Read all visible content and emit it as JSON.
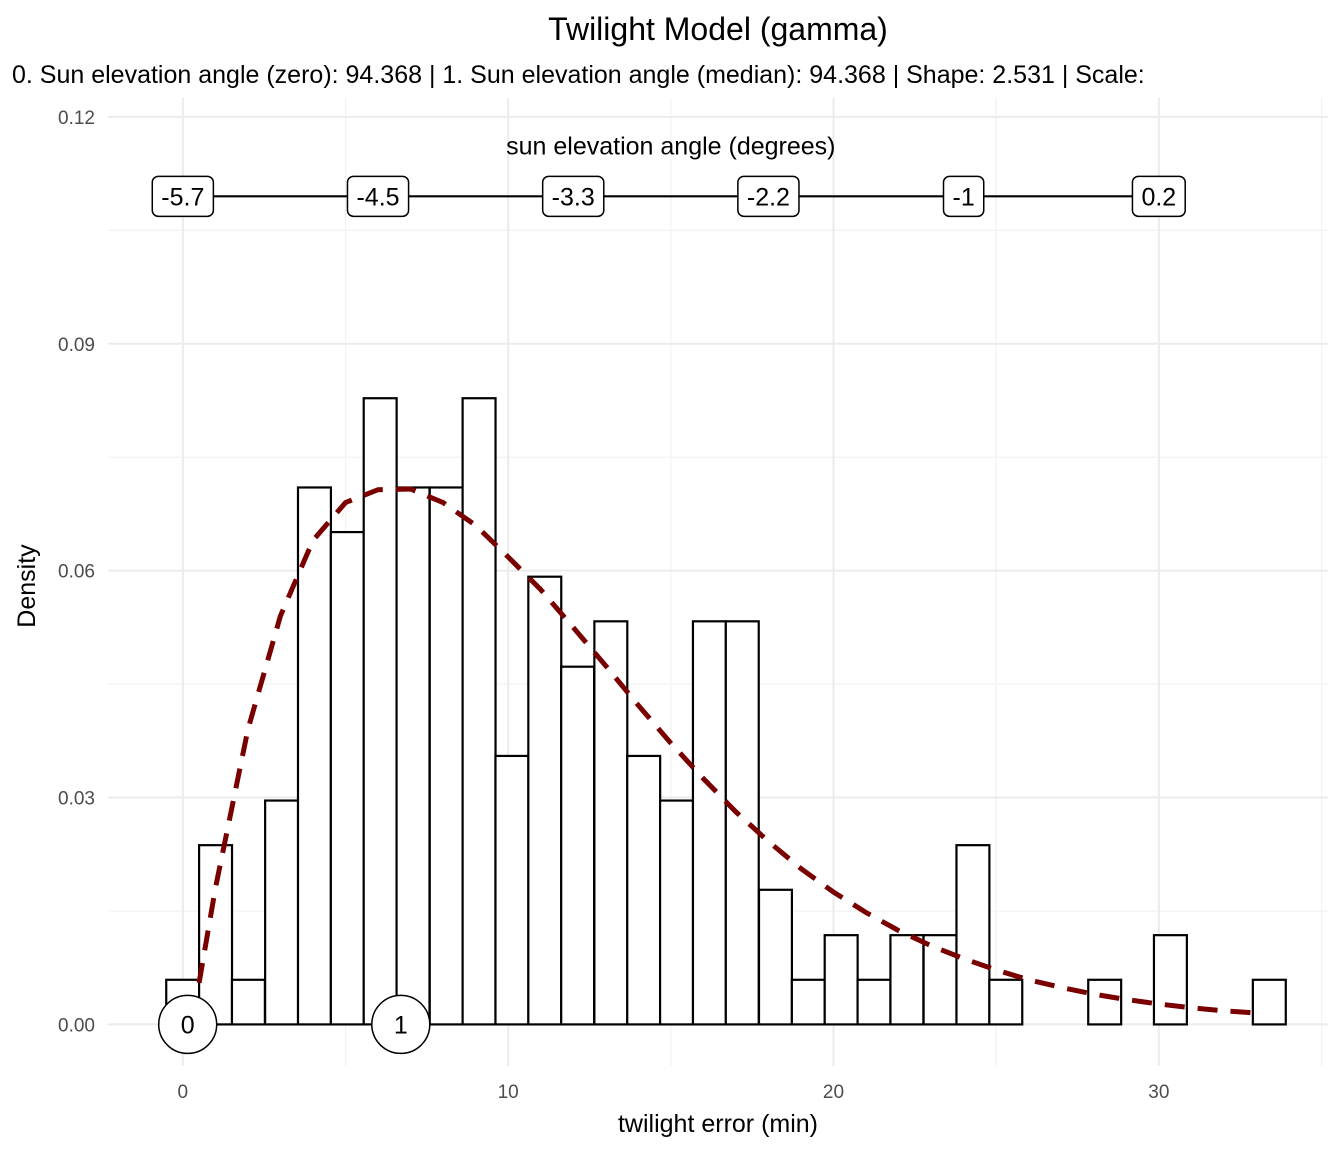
{
  "chart_data": {
    "type": "bar",
    "title": "Twilight Model (gamma)",
    "subtitle": "0. Sun elevation angle (zero): 94.368 | 1. Sun elevation angle (median): 94.368 | Shape: 2.531 | Scale:",
    "xlabel": "twilight error (min)",
    "ylabel": "Density",
    "xlim": [
      -2.3,
      35.2
    ],
    "ylim": [
      -0.0055,
      0.1225
    ],
    "x_ticks": [
      0,
      10,
      20,
      30
    ],
    "y_ticks": [
      0.0,
      0.03,
      0.06,
      0.09,
      0.12
    ],
    "y_tick_labels": [
      "0.00",
      "0.03",
      "0.06",
      "0.09",
      "0.12"
    ],
    "bin_width": 1.012,
    "bins": [
      {
        "x0": -0.51,
        "value": 0.0059
      },
      {
        "x0": 0.5,
        "value": 0.0237
      },
      {
        "x0": 1.51,
        "value": 0.0059
      },
      {
        "x0": 2.53,
        "value": 0.0296
      },
      {
        "x0": 3.54,
        "value": 0.071
      },
      {
        "x0": 4.55,
        "value": 0.0651
      },
      {
        "x0": 5.56,
        "value": 0.0828
      },
      {
        "x0": 6.57,
        "value": 0.071
      },
      {
        "x0": 7.59,
        "value": 0.071
      },
      {
        "x0": 8.6,
        "value": 0.0828
      },
      {
        "x0": 9.61,
        "value": 0.0355
      },
      {
        "x0": 10.62,
        "value": 0.0592
      },
      {
        "x0": 11.63,
        "value": 0.0473
      },
      {
        "x0": 12.65,
        "value": 0.0533
      },
      {
        "x0": 13.66,
        "value": 0.0355
      },
      {
        "x0": 14.67,
        "value": 0.0296
      },
      {
        "x0": 15.68,
        "value": 0.0533
      },
      {
        "x0": 16.69,
        "value": 0.0533
      },
      {
        "x0": 17.71,
        "value": 0.0178
      },
      {
        "x0": 18.72,
        "value": 0.0059
      },
      {
        "x0": 19.73,
        "value": 0.0118
      },
      {
        "x0": 20.74,
        "value": 0.0059
      },
      {
        "x0": 21.75,
        "value": 0.0118
      },
      {
        "x0": 22.77,
        "value": 0.0118
      },
      {
        "x0": 23.78,
        "value": 0.0237
      },
      {
        "x0": 24.79,
        "value": 0.0059
      },
      {
        "x0": 25.8,
        "value": 0.0
      },
      {
        "x0": 26.81,
        "value": 0.0
      },
      {
        "x0": 27.83,
        "value": 0.0059
      },
      {
        "x0": 28.84,
        "value": 0.0
      },
      {
        "x0": 29.85,
        "value": 0.0118
      },
      {
        "x0": 30.86,
        "value": 0.0
      },
      {
        "x0": 31.87,
        "value": 0.0
      },
      {
        "x0": 32.89,
        "value": 0.0059
      }
    ],
    "density_curve": {
      "style": "dashed",
      "color": "#7a0000",
      "points": [
        [
          0.5,
          0.0055
        ],
        [
          1.0,
          0.018
        ],
        [
          2.0,
          0.039
        ],
        [
          3.0,
          0.054
        ],
        [
          4.0,
          0.064
        ],
        [
          5.0,
          0.069
        ],
        [
          6.0,
          0.0707
        ],
        [
          7.0,
          0.0708
        ],
        [
          8.0,
          0.069
        ],
        [
          9.0,
          0.066
        ],
        [
          10.0,
          0.0618
        ],
        [
          11.0,
          0.0575
        ],
        [
          12.0,
          0.0525
        ],
        [
          13.0,
          0.0474
        ],
        [
          14.0,
          0.0422
        ],
        [
          15.0,
          0.0372
        ],
        [
          16.0,
          0.0325
        ],
        [
          17.0,
          0.0281
        ],
        [
          18.0,
          0.0242
        ],
        [
          19.0,
          0.0206
        ],
        [
          20.0,
          0.0175
        ],
        [
          21.0,
          0.0148
        ],
        [
          22.0,
          0.0124
        ],
        [
          23.0,
          0.0104
        ],
        [
          24.0,
          0.0087
        ],
        [
          25.0,
          0.0072
        ],
        [
          26.0,
          0.0059
        ],
        [
          27.0,
          0.0049
        ],
        [
          28.0,
          0.004
        ],
        [
          29.0,
          0.0033
        ],
        [
          30.0,
          0.0027
        ],
        [
          31.0,
          0.0022
        ],
        [
          32.0,
          0.0018
        ],
        [
          33.0,
          0.0015
        ]
      ]
    },
    "sun_elevation_axis": {
      "title": "sun elevation angle (degrees)",
      "y": 0.1095,
      "labels": [
        {
          "x": 0.0,
          "label": "-5.7"
        },
        {
          "x": 6.0,
          "label": "-4.5"
        },
        {
          "x": 12.0,
          "label": "-3.3"
        },
        {
          "x": 18.0,
          "label": "-2.2"
        },
        {
          "x": 24.0,
          "label": "-1"
        },
        {
          "x": 30.0,
          "label": "0.2"
        }
      ]
    },
    "markers": [
      {
        "x": 0.15,
        "label": "0"
      },
      {
        "x": 6.7,
        "label": "1"
      }
    ],
    "grid": true
  }
}
